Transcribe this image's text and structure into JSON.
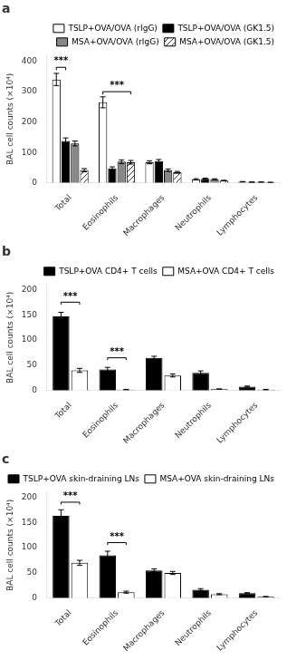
{
  "chart_data": [
    {
      "type": "bar",
      "title": "a",
      "ylabel": "BAL cell counts (×10⁴)",
      "categories": [
        "Total",
        "Eosinophils",
        "Macrophages",
        "Neutrophils",
        "Lymphocytes"
      ],
      "series": [
        {
          "name": "TSLP+OVA/OVA (rIgG)",
          "color": "white",
          "values": [
            340,
            265,
            68,
            12,
            4
          ],
          "errors": [
            20,
            18,
            5,
            2,
            0.8
          ]
        },
        {
          "name": "TSLP+OVA/OVA (GK1.5)",
          "color": "black",
          "values": [
            138,
            48,
            72,
            14,
            3
          ],
          "errors": [
            10,
            5,
            5,
            2,
            0.5
          ]
        },
        {
          "name": "MSA+OVA/OVA (rIgG)",
          "color": "#888888",
          "values": [
            130,
            70,
            42,
            12,
            3
          ],
          "errors": [
            8,
            6,
            4,
            2,
            0.5
          ]
        },
        {
          "name": "MSA+OVA/OVA (GK1.5)",
          "color": "white",
          "values": [
            42,
            68,
            35,
            8,
            2
          ],
          "errors": [
            5,
            6,
            3,
            1,
            0.3
          ]
        }
      ],
      "ylim": [
        0,
        420
      ],
      "yticks": [
        0,
        100,
        200,
        300,
        400
      ],
      "grid": false,
      "legend": "upper right",
      "annotations": [
        {
          "text": "***",
          "x1": 0,
          "series1": 0,
          "x2": 0,
          "series2": 1,
          "y": 380
        },
        {
          "text": "***",
          "x1": 1,
          "series1": 0,
          "x2": 1,
          "series2": 3,
          "y": 300
        }
      ]
    },
    {
      "type": "bar",
      "title": "b",
      "ylabel": "BAL cell counts (×10⁴)",
      "categories": [
        "Total",
        "Eosinophils",
        "Macrophages",
        "Neutrophils",
        "Lymphocytes"
      ],
      "series": [
        {
          "name": "TSLP+OVA CD4+ T cells",
          "color": "black",
          "values": [
            147,
            42,
            65,
            35,
            8
          ],
          "errors": [
            8,
            4,
            3,
            4,
            1
          ]
        },
        {
          "name": "MSA+OVA CD4+ T cells",
          "color": "white",
          "values": [
            40,
            2,
            30,
            3,
            2
          ],
          "errors": [
            4,
            0.5,
            3,
            0.5,
            0.5
          ]
        }
      ],
      "ylim": [
        0,
        210
      ],
      "yticks": [
        0,
        50,
        100,
        150,
        200
      ],
      "grid": false,
      "legend": "upper right",
      "annotations": [
        {
          "text": "***",
          "x1": 0,
          "series1": 0,
          "x2": 0,
          "series2": 1,
          "y": 175
        },
        {
          "text": "***",
          "x1": 1,
          "series1": 0,
          "x2": 1,
          "series2": 1,
          "y": 65
        }
      ]
    },
    {
      "type": "bar",
      "title": "c",
      "ylabel": "BAL cell counts (×10⁴)",
      "categories": [
        "Total",
        "Eosinophils",
        "Macrophages",
        "Neutrophils",
        "Lymphocytes"
      ],
      "series": [
        {
          "name": "TSLP+OVA skin-draining LNs",
          "color": "black",
          "values": [
            163,
            85,
            55,
            17,
            10
          ],
          "errors": [
            12,
            8,
            3,
            2,
            1
          ]
        },
        {
          "name": "MSA+OVA skin-draining LNs",
          "color": "white",
          "values": [
            70,
            12,
            50,
            8,
            3
          ],
          "errors": [
            5,
            2,
            3,
            1,
            0.5
          ]
        }
      ],
      "ylim": [
        0,
        210
      ],
      "yticks": [
        0,
        50,
        100,
        150,
        200
      ],
      "grid": false,
      "legend": "upper right",
      "annotations": [
        {
          "text": "***",
          "x1": 0,
          "series1": 0,
          "x2": 0,
          "series2": 1,
          "y": 190
        },
        {
          "text": "***",
          "x1": 1,
          "series1": 0,
          "x2": 1,
          "series2": 1,
          "y": 110
        }
      ]
    }
  ]
}
